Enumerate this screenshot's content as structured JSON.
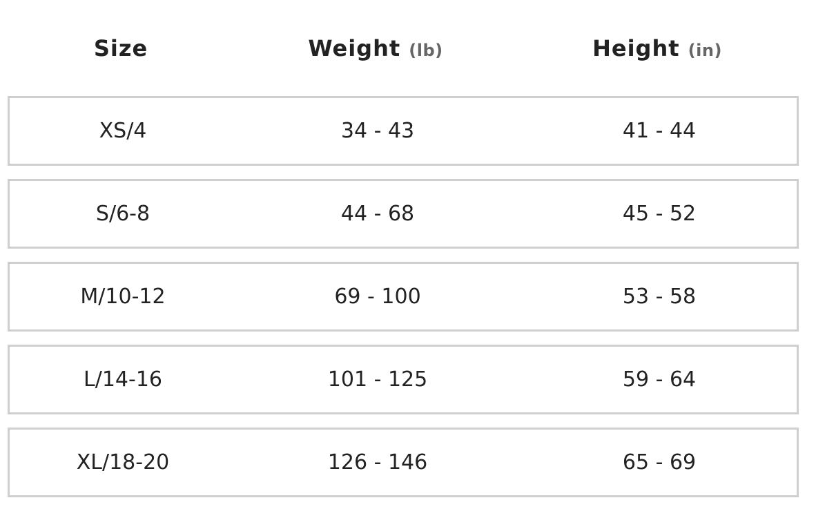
{
  "headers": [
    {
      "label": "Size",
      "unit": ""
    },
    {
      "label": "Weight",
      "unit": "(lb)"
    },
    {
      "label": "Height",
      "unit": "(in)"
    }
  ],
  "rows": [
    {
      "size": "XS/4",
      "weight": "34 - 43",
      "height": "41 - 44"
    },
    {
      "size": "S/6-8",
      "weight": "44 - 68",
      "height": "45 - 52"
    },
    {
      "size": "M/10-12",
      "weight": "69 - 100",
      "height": "53 - 58"
    },
    {
      "size": "L/14-16",
      "weight": "101 - 125",
      "height": "59 - 64"
    },
    {
      "size": "XL/18-20",
      "weight": "126 - 146",
      "height": "65 - 69"
    }
  ]
}
